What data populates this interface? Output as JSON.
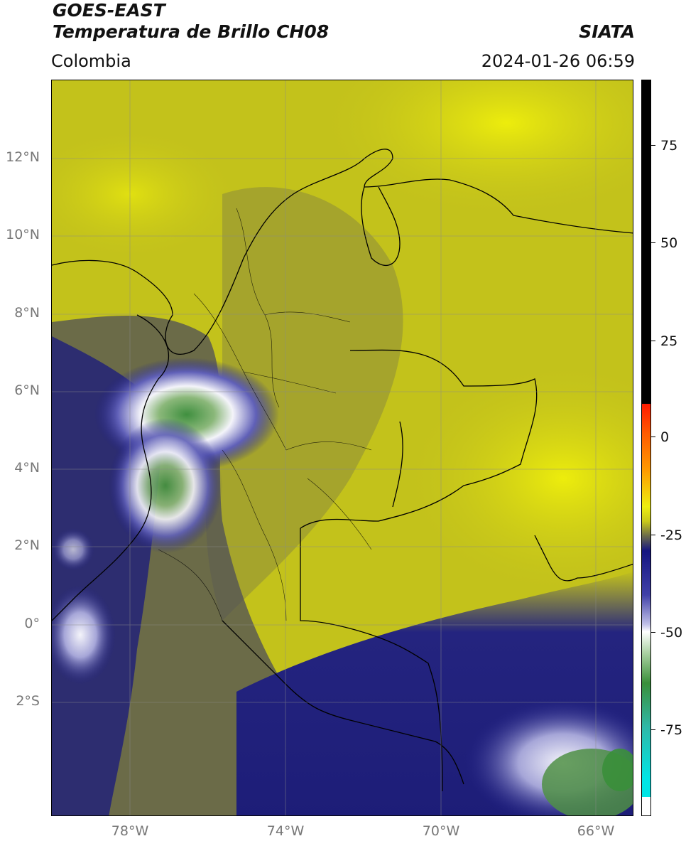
{
  "header": {
    "satellite": "GOES-EAST",
    "product": "Temperatura de Brillo CH08",
    "brand": "SIATA",
    "region": "Colombia",
    "datetime": "2024-01-26 06:59"
  },
  "map": {
    "lat_ticks": [
      "12°N",
      "10°N",
      "8°N",
      "6°N",
      "4°N",
      "2°N",
      "0°",
      "2°S"
    ],
    "lon_ticks": [
      "78°W",
      "74°W",
      "70°W",
      "66°W"
    ],
    "palette": {
      "warm_yellow": "#e8e80a",
      "olive": "#a9a82d",
      "dark_olive": "#6f6e3f",
      "navy": "#1e1e86",
      "white_cloud": "#f2f2f8",
      "green_core": "#3a8a3a",
      "coast": "#000000"
    }
  },
  "colorbar": {
    "labels": [
      "75",
      "50",
      "25",
      "0",
      "-25",
      "-50",
      "-75"
    ],
    "colors": {
      "black": "#000000",
      "red": "#ff1a00",
      "orange": "#ff9a00",
      "yellow": "#eeee10",
      "grey": "#6a6a4a",
      "navy": "#151580",
      "white": "#ffffff",
      "green": "#3a8f3a",
      "teal": "#2fb8a8",
      "cyan": "#00e5e5"
    }
  }
}
